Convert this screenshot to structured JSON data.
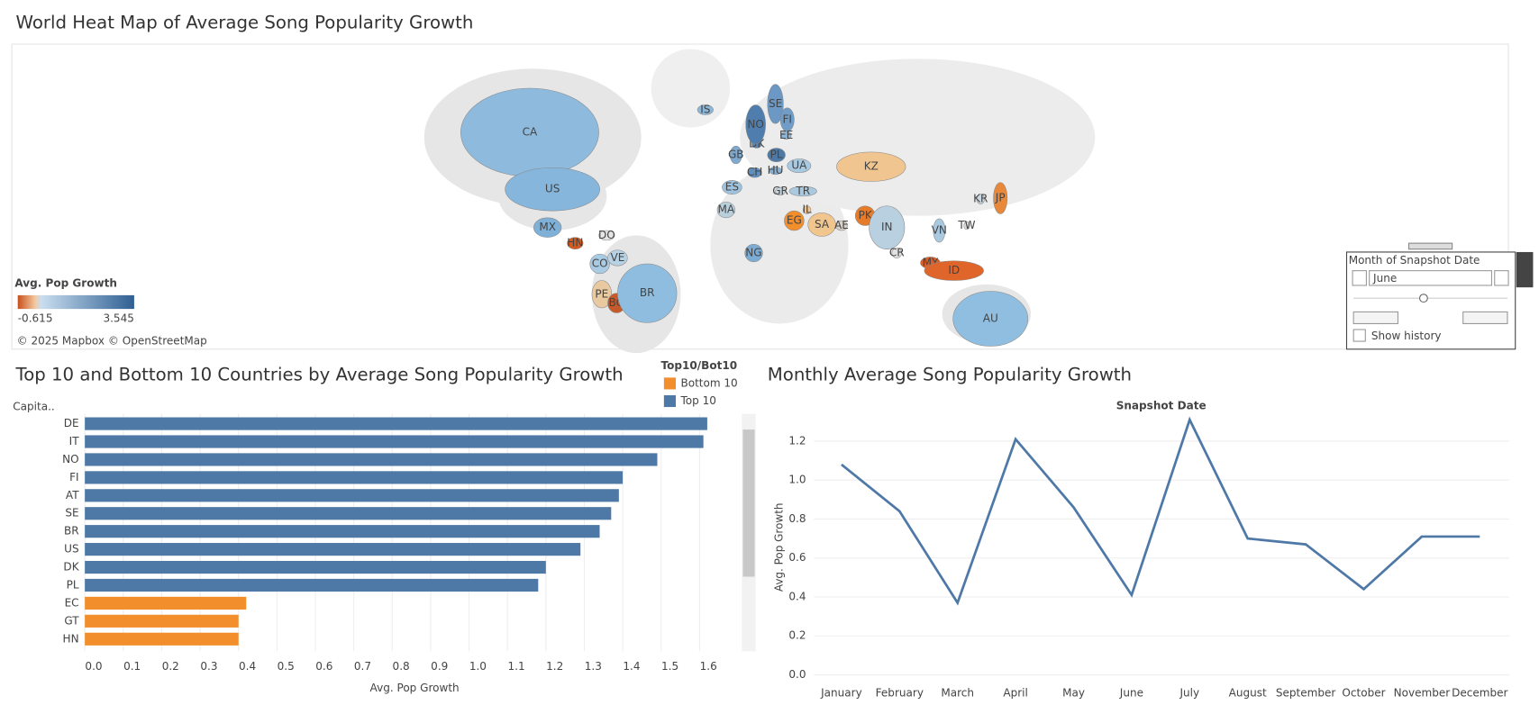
{
  "title": "World Heat Map of Average Song Popularity Growth",
  "map": {
    "countries": [
      {
        "label": "CA",
        "color": "#8ebbdd"
      },
      {
        "label": "US",
        "color": "#86b6db"
      },
      {
        "label": "MX",
        "color": "#7fb0d8"
      },
      {
        "label": "HN",
        "color": "#d45a1e"
      },
      {
        "label": "DO",
        "color": "#e6e6e6"
      },
      {
        "label": "CO",
        "color": "#a9cbe3"
      },
      {
        "label": "VE",
        "color": "#b7d2e4"
      },
      {
        "label": "PE",
        "color": "#e8c9a0"
      },
      {
        "label": "BO",
        "color": "#c65a2a"
      },
      {
        "label": "BR",
        "color": "#8fbddf"
      },
      {
        "label": "NG",
        "color": "#7cacd4"
      },
      {
        "label": "MA",
        "color": "#b9cfdc"
      },
      {
        "label": "ES",
        "color": "#9fc3df"
      },
      {
        "label": "EG",
        "color": "#f28e2b"
      },
      {
        "label": "SA",
        "color": "#f0c58e"
      },
      {
        "label": "AE",
        "color": "#d9d2c9"
      },
      {
        "label": "IL",
        "color": "#f2c58f"
      },
      {
        "label": "TR",
        "color": "#aac9df"
      },
      {
        "label": "GR",
        "color": "#c4d6e2"
      },
      {
        "label": "CH",
        "color": "#5f8fbf"
      },
      {
        "label": "HU",
        "color": "#86b1d6"
      },
      {
        "label": "PL",
        "color": "#4e79a7"
      },
      {
        "label": "DK",
        "color": "#5a86b6"
      },
      {
        "label": "GB",
        "color": "#7ea9d1"
      },
      {
        "label": "NO",
        "color": "#4f7eae"
      },
      {
        "label": "SE",
        "color": "#6b98c4"
      },
      {
        "label": "FI",
        "color": "#6f9dc8"
      },
      {
        "label": "EE",
        "color": "#8cb8db"
      },
      {
        "label": "UA",
        "color": "#a8c9e2"
      },
      {
        "label": "IS",
        "color": "#8ab7da"
      },
      {
        "label": "KZ",
        "color": "#f1c58f"
      },
      {
        "label": "PK",
        "color": "#e67c29"
      },
      {
        "label": "IN",
        "color": "#b8d0e0"
      },
      {
        "label": "CR",
        "color": "#e3e3e3"
      },
      {
        "label": "VN",
        "color": "#a9c9e1"
      },
      {
        "label": "TW",
        "color": "#dadada"
      },
      {
        "label": "KR",
        "color": "#c9d8e2"
      },
      {
        "label": "JP",
        "color": "#e8883a"
      },
      {
        "label": "MY",
        "color": "#d9602a"
      },
      {
        "label": "ID",
        "color": "#e0652a"
      },
      {
        "label": "AU",
        "color": "#8fbee0"
      }
    ],
    "legend": {
      "title": "Avg. Pop Growth",
      "min": -0.615,
      "max": 3.545
    },
    "credit": "© 2025 Mapbox © OpenStreetMap"
  },
  "filter": {
    "title": "Month of Snapshot Date",
    "value": "June",
    "option": "Show history"
  },
  "chart_data": [
    {
      "type": "bar",
      "orientation": "horizontal",
      "title": "Top 10 and Bottom 10 Countries by Average Song Popularity Growth",
      "y_label": "Capita..",
      "x_label": "Avg. Pop Growth",
      "legend_title": "Top10/Bot10",
      "categories": [
        "DE",
        "IT",
        "NO",
        "FI",
        "AT",
        "SE",
        "BR",
        "US",
        "DK",
        "PL",
        "EC",
        "GT",
        "HN"
      ],
      "series": [
        {
          "name": "Bottom 10",
          "color": "#f28e2b",
          "values": [
            null,
            null,
            null,
            null,
            null,
            null,
            null,
            null,
            null,
            null,
            0.42,
            0.4,
            0.4
          ]
        },
        {
          "name": "Top 10",
          "color": "#4e79a7",
          "values": [
            1.62,
            1.61,
            1.49,
            1.4,
            1.39,
            1.37,
            1.34,
            1.29,
            1.2,
            1.18,
            null,
            null,
            null
          ]
        }
      ],
      "xlim": [
        0,
        1.705
      ],
      "xticks": [
        {
          "value": 0,
          "label": "0.0"
        },
        0.1,
        0.2,
        0.3,
        0.4,
        0.5,
        0.6,
        0.7,
        0.8,
        0.9,
        {
          "value": 1,
          "label": "1.0"
        },
        1.1,
        1.2,
        1.3,
        1.4,
        1.5,
        1.6
      ],
      "grid": true
    },
    {
      "type": "line",
      "title": "Monthly Average Song Popularity Growth",
      "x_label": "Snapshot Date",
      "y_label": "Avg. Pop Growth",
      "categories": [
        "January",
        "February",
        "March",
        "April",
        "May",
        "June",
        "July",
        "August",
        "September",
        "October",
        "November",
        "December"
      ],
      "values": [
        1.08,
        0.84,
        0.37,
        1.21,
        0.86,
        0.41,
        1.31,
        0.7,
        0.67,
        0.44,
        0.71,
        0.71
      ],
      "color": "#4e79a7",
      "ylim": [
        -0.06,
        1.35
      ],
      "yticks": [
        {
          "value": 0,
          "label": "0.0"
        },
        0.2,
        0.4,
        0.6,
        0.8,
        {
          "value": 1,
          "label": "1.0"
        },
        1.2
      ],
      "grid": true
    }
  ]
}
